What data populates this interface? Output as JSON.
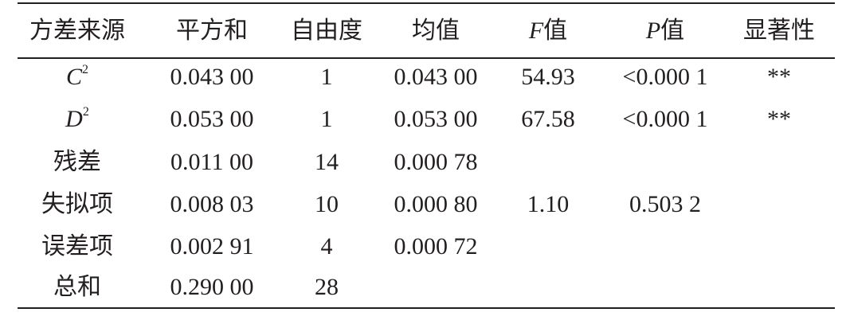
{
  "header": [
    {
      "text": "方差来源"
    },
    {
      "text": "平方和"
    },
    {
      "text": "自由度"
    },
    {
      "text": "均值"
    },
    {
      "italic": "F",
      "text": "值"
    },
    {
      "italic": "P",
      "text": "值"
    },
    {
      "text": "显著性"
    }
  ],
  "rows": [
    {
      "source": {
        "italic": "C",
        "sup": "2"
      },
      "ss": "0.043 00",
      "df": "1",
      "ms": "0.043 00",
      "f": "54.93",
      "p": "<0.000 1",
      "sig": "**"
    },
    {
      "source": {
        "italic": "D",
        "sup": "2"
      },
      "ss": "0.053 00",
      "df": "1",
      "ms": "0.053 00",
      "f": "67.58",
      "p": "<0.000 1",
      "sig": "**"
    },
    {
      "source": {
        "text": "残差"
      },
      "ss": "0.011 00",
      "df": "14",
      "ms": "0.000 78",
      "f": "",
      "p": "",
      "sig": ""
    },
    {
      "source": {
        "text": "失拟项"
      },
      "ss": "0.008 03",
      "df": "10",
      "ms": "0.000 80",
      "f": "1.10",
      "p": "0.503 2",
      "sig": ""
    },
    {
      "source": {
        "text": "误差项"
      },
      "ss": "0.002 91",
      "df": "4",
      "ms": "0.000 72",
      "f": "",
      "p": "",
      "sig": ""
    },
    {
      "source": {
        "text": "总和"
      },
      "ss": "0.290 00",
      "df": "28",
      "ms": "",
      "f": "",
      "p": "",
      "sig": ""
    }
  ]
}
